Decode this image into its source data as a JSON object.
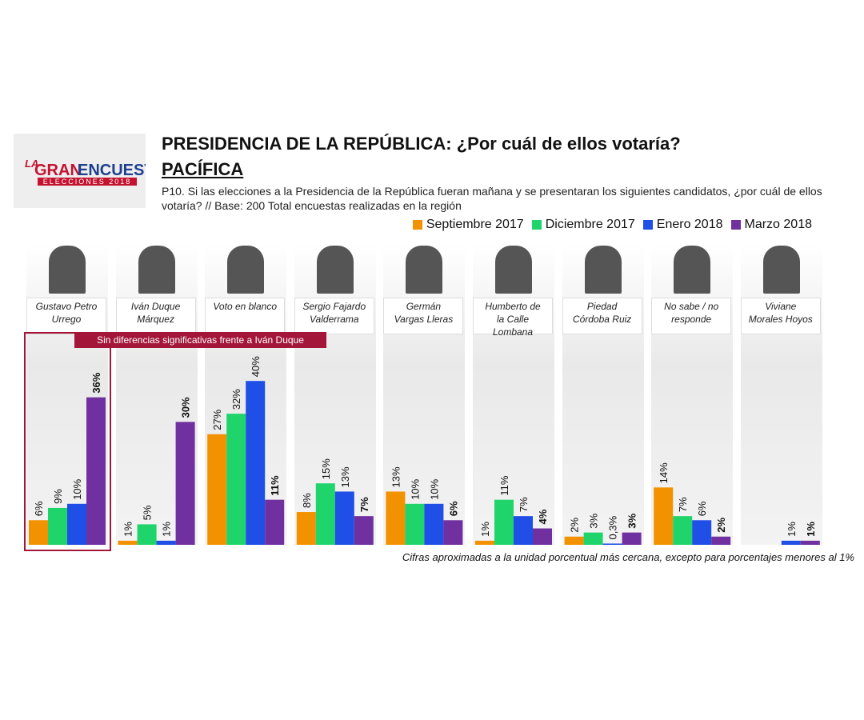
{
  "logo": {
    "la": "LA",
    "gran": "GRAN",
    "encuesta": "ENCUESTA",
    "sub": "ELECCIONES 2018"
  },
  "chart_data": {
    "type": "bar",
    "title": "PRESIDENCIA DE LA REPÚBLICA: ¿Por cuál de ellos votaría?",
    "subtitle": "PACÍFICA",
    "question": "P10. Si las elecciones a la Presidencia de la República fueran mañana y se presentaran los siguientes candidatos, ¿por cuál de ellos votaría?  // Base: 200 Total encuestas realizadas en la región",
    "annotation": "Sin diferencias significativas frente a Iván Duque",
    "footnote": "Cifras aproximadas a la unidad porcentual más cercana, excepto para porcentajes menores al 1%",
    "categories": [
      "Gustavo Petro Urrego",
      "Iván Duque Márquez",
      "Voto en blanco",
      "Sergio Fajardo Valderrama",
      "Germán Vargas Lleras",
      "Humberto de la Calle Lombana",
      "Piedad Córdoba Ruiz",
      "No sabe / no responde",
      "Viviane Morales Hoyos"
    ],
    "series": [
      {
        "name": "Septiembre 2017",
        "color": "#f39200",
        "values": [
          6,
          1,
          27,
          8,
          13,
          1,
          2,
          14,
          null
        ],
        "value_labels": [
          "6%",
          "1%",
          "27%",
          "8%",
          "13%",
          "1%",
          "2%",
          "14%",
          null
        ]
      },
      {
        "name": "Diciembre 2017",
        "color": "#1fd46a",
        "values": [
          9,
          5,
          32,
          15,
          10,
          11,
          3,
          7,
          null
        ],
        "value_labels": [
          "9%",
          "5%",
          "32%",
          "15%",
          "10%",
          "11%",
          "3%",
          "7%",
          null
        ]
      },
      {
        "name": "Enero 2018",
        "color": "#1f4fe6",
        "values": [
          10,
          1,
          40,
          13,
          10,
          7,
          0.3,
          6,
          1
        ],
        "value_labels": [
          "10%",
          "1%",
          "40%",
          "13%",
          "10%",
          "7%",
          "0,3%",
          "6%",
          "1%"
        ]
      },
      {
        "name": "Marzo 2018",
        "color": "#7030a0",
        "values": [
          36,
          30,
          11,
          7,
          6,
          4,
          3,
          2,
          1
        ],
        "value_labels": [
          "36%",
          "30%",
          "11%",
          "7%",
          "6%",
          "4%",
          "3%",
          "2%",
          "1%"
        ]
      }
    ]
  }
}
